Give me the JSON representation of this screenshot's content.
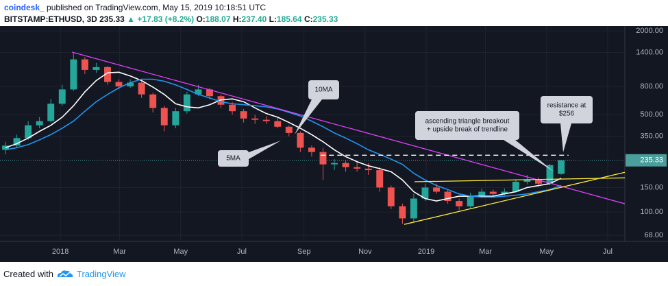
{
  "header": {
    "publisher": "coindesk_",
    "published": "published on TradingView.com, May 15, 2019 10:18:51 UTC",
    "symbol": "BITSTAMP:ETHUSD, 3D",
    "last": "235.33",
    "change": "▲ +17.83 (+8.2%)",
    "ohlc": [
      {
        "k": "O:",
        "v": "188.07"
      },
      {
        "k": "H:",
        "v": "237.40"
      },
      {
        "k": "L:",
        "v": "185.64"
      },
      {
        "k": "C:",
        "v": "235.33"
      }
    ]
  },
  "footer": {
    "text": "Created with",
    "brand": "TradingView"
  },
  "chart_data": {
    "type": "candlestick",
    "log_scale": true,
    "grid": true,
    "up_color": "#26a69a",
    "down_color": "#ef5350",
    "xlim": [
      2017.835,
      2019.543
    ],
    "ylim": [
      61.5,
      2120
    ],
    "xticks": [
      {
        "value": 2018,
        "label": "2018"
      },
      {
        "value": 2018.162,
        "label": "Mar"
      },
      {
        "value": 2018.329,
        "label": "May"
      },
      {
        "value": 2018.496,
        "label": "Jul"
      },
      {
        "value": 2018.666,
        "label": "Sep"
      },
      {
        "value": 2018.833,
        "label": "Nov"
      },
      {
        "value": 2019,
        "label": "2019"
      },
      {
        "value": 2019.162,
        "label": "Mar"
      },
      {
        "value": 2019.329,
        "label": "May"
      },
      {
        "value": 2019.496,
        "label": "Jul"
      }
    ],
    "yticks": [
      {
        "value": 68,
        "label": "68.00"
      },
      {
        "value": 100,
        "label": "100.00"
      },
      {
        "value": 150,
        "label": "150.00"
      },
      {
        "value": 350,
        "label": "350.00"
      },
      {
        "value": 500,
        "label": "500.00"
      },
      {
        "value": 800,
        "label": "800.00"
      },
      {
        "value": 1400,
        "label": "1400.00"
      },
      {
        "value": 2000,
        "label": "2000.00"
      }
    ],
    "last_price": 235.33,
    "last_color": "#4a9f9c",
    "x": [
      2017.85,
      2017.881,
      2017.912,
      2017.943,
      2017.974,
      2018.005,
      2018.036,
      2018.067,
      2018.098,
      2018.129,
      2018.16,
      2018.191,
      2018.222,
      2018.253,
      2018.284,
      2018.315,
      2018.346,
      2018.377,
      2018.408,
      2018.439,
      2018.47,
      2018.501,
      2018.532,
      2018.563,
      2018.594,
      2018.625,
      2018.656,
      2018.687,
      2018.718,
      2018.749,
      2018.78,
      2018.811,
      2018.842,
      2018.873,
      2018.904,
      2018.935,
      2018.966,
      2018.997,
      2019.028,
      2019.059,
      2019.09,
      2019.121,
      2019.152,
      2019.183,
      2019.214,
      2019.245,
      2019.276,
      2019.307,
      2019.338,
      2019.369
    ],
    "open": [
      280,
      300,
      340,
      420,
      450,
      600,
      760,
      1250,
      1050,
      1100,
      860,
      800,
      850,
      700,
      560,
      420,
      530,
      700,
      760,
      680,
      590,
      530,
      470,
      460,
      450,
      410,
      370,
      290,
      270,
      220,
      225,
      210,
      205,
      200,
      150,
      110,
      90,
      125,
      150,
      140,
      120,
      110,
      130,
      140,
      135,
      140,
      165,
      170,
      160,
      188.07
    ],
    "high": [
      320,
      360,
      450,
      480,
      650,
      820,
      1400,
      1300,
      1180,
      1120,
      900,
      900,
      870,
      720,
      580,
      560,
      730,
      820,
      780,
      700,
      620,
      550,
      500,
      490,
      480,
      420,
      380,
      300,
      290,
      240,
      235,
      230,
      225,
      210,
      155,
      115,
      135,
      160,
      160,
      145,
      125,
      138,
      148,
      145,
      148,
      172,
      185,
      178,
      222,
      237.4
    ],
    "low": [
      260,
      290,
      330,
      400,
      440,
      580,
      740,
      980,
      1000,
      820,
      760,
      780,
      660,
      520,
      380,
      400,
      510,
      680,
      650,
      560,
      500,
      440,
      430,
      430,
      400,
      350,
      270,
      250,
      170,
      200,
      195,
      195,
      185,
      140,
      105,
      82,
      85,
      120,
      135,
      115,
      103,
      106,
      126,
      128,
      132,
      138,
      158,
      152,
      156,
      185.64
    ],
    "close": [
      300,
      340,
      420,
      450,
      600,
      760,
      1250,
      1050,
      1100,
      860,
      800,
      850,
      700,
      560,
      420,
      530,
      700,
      760,
      680,
      590,
      530,
      470,
      460,
      450,
      410,
      370,
      290,
      270,
      220,
      225,
      210,
      205,
      200,
      150,
      110,
      90,
      125,
      150,
      140,
      120,
      110,
      130,
      140,
      135,
      140,
      165,
      170,
      160,
      217.5,
      235.33
    ],
    "series": [
      {
        "color": "#ffffff",
        "values": [
          290,
          310,
          340,
          380,
          420,
          480,
          580,
          730,
          880,
          1000,
          1010,
          950,
          880,
          790,
          700,
          600,
          570,
          560,
          590,
          640,
          650,
          620,
          560,
          510,
          480,
          440,
          400,
          360,
          320,
          280,
          250,
          230,
          215,
          205,
          195,
          170,
          140,
          125,
          120,
          125,
          130,
          130,
          130,
          130,
          135,
          140,
          150,
          155,
          160,
          175
        ]
      },
      {
        "color": "#2196f3",
        "values": [
          280,
          290,
          305,
          330,
          360,
          400,
          450,
          530,
          620,
          700,
          780,
          850,
          900,
          900,
          870,
          820,
          760,
          700,
          660,
          620,
          600,
          590,
          580,
          570,
          550,
          520,
          490,
          450,
          410,
          370,
          340,
          310,
          280,
          260,
          240,
          220,
          190,
          170,
          155,
          145,
          135,
          130,
          128,
          128,
          130,
          132,
          135,
          140,
          145,
          155
        ]
      }
    ],
    "lines": [
      {
        "color": "#e040fb",
        "x": [
          2018.032,
          2019.543
        ],
        "y": [
          1410,
          114.7
        ]
      },
      {
        "color": "#ffeb3b",
        "x": [
          2018.968,
          2019.543
        ],
        "y": [
          165,
          176
        ]
      },
      {
        "color": "#ffeb3b",
        "x": [
          2018.94,
          2019.543
        ],
        "y": [
          81.5,
          193
        ]
      },
      {
        "color": "#ffffff",
        "dashed": true,
        "x": [
          2018.712,
          2019.389
        ],
        "y": [
          256,
          256
        ]
      }
    ],
    "annotations": [
      {
        "lines": [
          "10MA"
        ]
      },
      {
        "lines": [
          "5MA"
        ]
      },
      {
        "lines": [
          "ascending triangle breakout",
          "+ upside break of trendline"
        ]
      },
      {
        "lines": [
          "resistance at",
          "$256"
        ]
      }
    ]
  }
}
